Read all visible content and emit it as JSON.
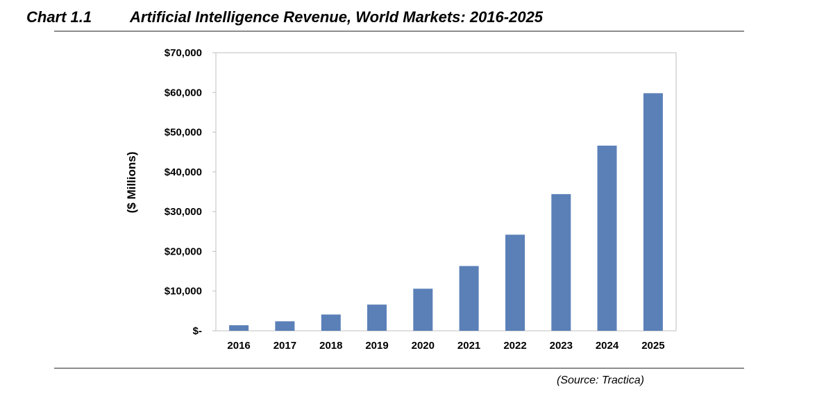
{
  "header": {
    "chart_label": "Chart 1.1",
    "title": "Artificial Intelligence Revenue, World Markets: 2016-2025"
  },
  "footer": {
    "source": "(Source: Tractica)"
  },
  "colors": {
    "bar": "#5b80b8",
    "plot_border": "#bfbfbf",
    "rule": "#8c8c8c"
  },
  "chart_data": {
    "type": "bar",
    "title": "Artificial Intelligence Revenue, World Markets: 2016-2025",
    "xlabel": "",
    "ylabel": "($ Millions)",
    "categories": [
      "2016",
      "2017",
      "2018",
      "2019",
      "2020",
      "2021",
      "2022",
      "2023",
      "2024",
      "2025"
    ],
    "values": [
      1400,
      2400,
      4100,
      6600,
      10600,
      16300,
      24200,
      34400,
      46600,
      59800
    ],
    "ylim": [
      0,
      70000
    ],
    "yticks": [
      0,
      10000,
      20000,
      30000,
      40000,
      50000,
      60000,
      70000
    ],
    "ytick_labels": [
      "$-",
      "$10,000",
      "$20,000",
      "$30,000",
      "$40,000",
      "$50,000",
      "$60,000",
      "$70,000"
    ],
    "grid": false,
    "legend": "none"
  }
}
